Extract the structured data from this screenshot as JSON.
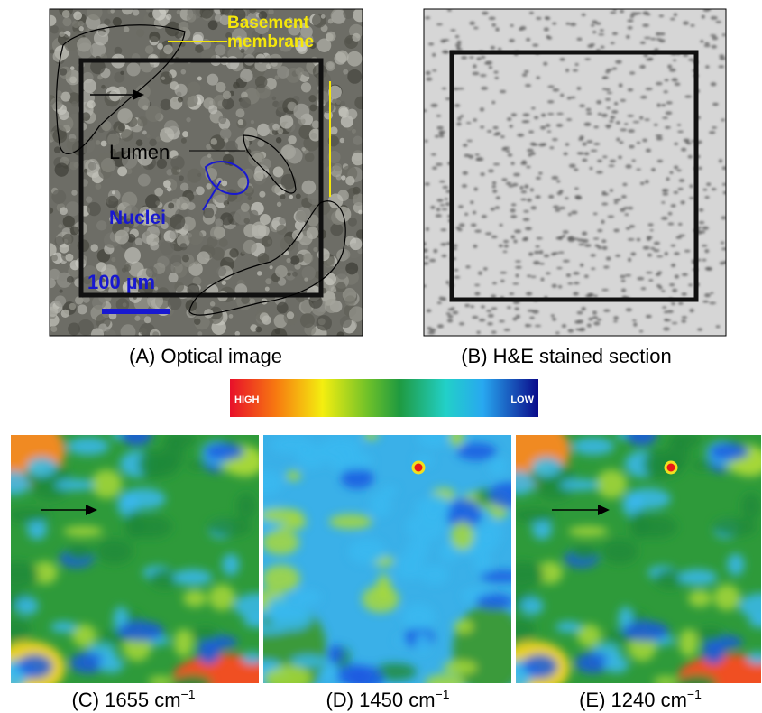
{
  "panels": [
    {
      "caption": "(A) Optical image",
      "annotations": [
        "Basement",
        "membrane",
        "Lumen",
        "Nuclei",
        "100 µm"
      ]
    },
    {
      "caption": "(B) H&E stained section"
    },
    {
      "caption": "(C) 1655 cm",
      "superscript": "−1"
    },
    {
      "caption": "(D) 1450 cm",
      "superscript": "−1"
    },
    {
      "caption": "(E) 1240 cm",
      "superscript": "−1"
    }
  ],
  "colorbar": {
    "high": "HIGH",
    "low": "LOW"
  }
}
